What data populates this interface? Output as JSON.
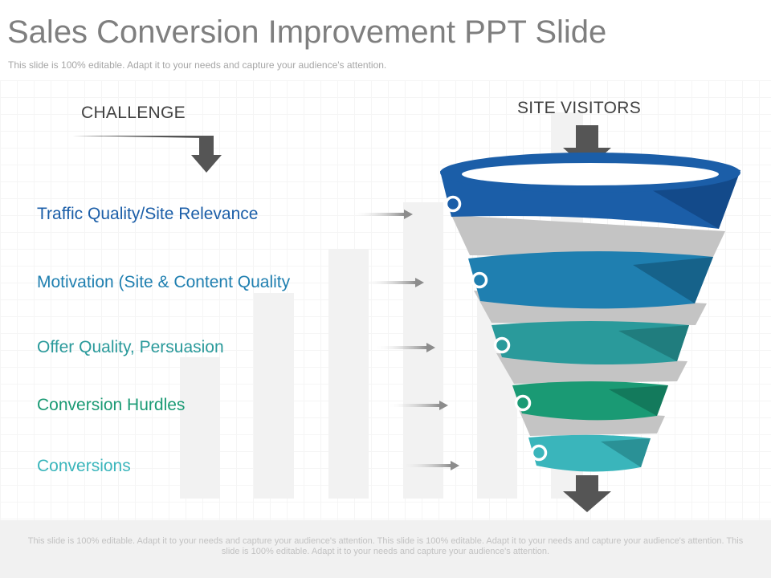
{
  "slide": {
    "title": "Sales Conversion Improvement PPT Slide",
    "subtitle": "This slide is 100% editable. Adapt it to your needs and capture your audience's attention.",
    "challenge_heading": "CHALLENGE",
    "visitors_heading": "SITE VISITORS",
    "footer_text": "This slide is 100% editable. Adapt it to your needs and capture your audience's attention. This slide is 100% editable. Adapt it to your needs and capture your audience's attention. This slide is 100% editable. Adapt it to your needs and capture your audience's attention."
  },
  "stages": [
    {
      "label": "Traffic Quality/Site Relevance",
      "color": "#1b5ea8"
    },
    {
      "label": "Motivation  (Site & Content Quality",
      "color": "#1f7fb0"
    },
    {
      "label": "Offer Quality, Persuasion",
      "color": "#2a9a9b"
    },
    {
      "label": "Conversion Hurdles",
      "color": "#1a9a74"
    },
    {
      "label": "Conversions",
      "color": "#3ab5bb"
    }
  ],
  "colors": {
    "title": "#7f7f7f",
    "heading": "#404040",
    "arrow": "#555555",
    "ribbon": "#c4c4c4",
    "background_bars": "#f2f2f2"
  }
}
